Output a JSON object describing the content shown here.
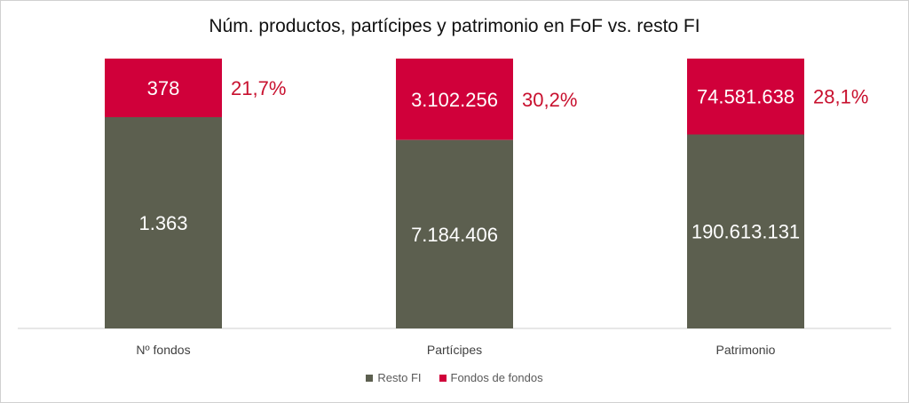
{
  "chart_data": {
    "type": "bar",
    "stacked": "100%",
    "title": "Núm. productos, partícipes y patrimonio en FoF vs. resto FI",
    "categories": [
      "Nº fondos",
      "Partícipes",
      "Patrimonio"
    ],
    "series": [
      {
        "name": "Resto FI",
        "color": "#5c5f4f",
        "values": [
          1363,
          7184406,
          190613131
        ],
        "labels": [
          "1.363",
          "7.184.406",
          "190.613.131"
        ]
      },
      {
        "name": "Fondos de fondos",
        "color": "#d0003a",
        "values": [
          378,
          3102256,
          74581638
        ],
        "labels": [
          "378",
          "3.102.256",
          "74.581.638"
        ]
      }
    ],
    "share_labels": [
      "21,7%",
      "30,2%",
      "28,1%"
    ],
    "share_color": "#c8102e",
    "legend_position": "bottom"
  }
}
